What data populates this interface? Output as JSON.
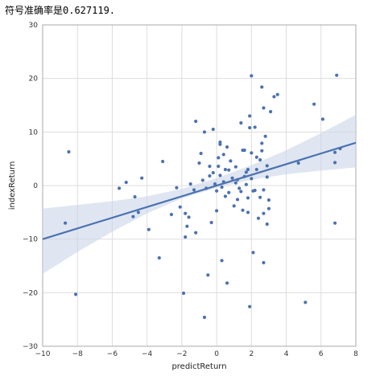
{
  "header": {
    "text": "符号准确率是0.627119."
  },
  "chart_data": {
    "type": "scatter",
    "title": "",
    "xlabel": "predictReturn",
    "ylabel": "indexReturn",
    "xlim": [
      -10,
      8
    ],
    "ylim": [
      -30,
      30
    ],
    "xticks": [
      -10,
      -8,
      -6,
      -4,
      -2,
      0,
      2,
      4,
      6,
      8
    ],
    "yticks": [
      -30,
      -20,
      -10,
      0,
      10,
      20,
      30
    ],
    "grid": true,
    "legend": "none",
    "point_color": "#4c72b0",
    "line_color": "#4c72b0",
    "band_color": "#c9d5ea",
    "regression": {
      "x": [
        -10,
        8
      ],
      "y": [
        -10.0,
        8.0
      ]
    },
    "confidence_band": {
      "x": [
        -10,
        -8,
        -6,
        -4,
        -2,
        0,
        2,
        4,
        6,
        8
      ],
      "lower": [
        -16.5,
        -12.4,
        -8.6,
        -5.2,
        -2.4,
        -0.4,
        1.1,
        2.1,
        2.8,
        3.4
      ],
      "upper": [
        -4.3,
        -3.6,
        -2.9,
        -2.0,
        -0.6,
        1.4,
        3.8,
        6.6,
        9.8,
        13.2
      ]
    },
    "points": [
      {
        "x": -8.5,
        "y": 6.3
      },
      {
        "x": -8.7,
        "y": -7.0
      },
      {
        "x": -8.1,
        "y": -20.3
      },
      {
        "x": -5.6,
        "y": -0.5
      },
      {
        "x": -5.2,
        "y": 0.6
      },
      {
        "x": -4.8,
        "y": -5.8
      },
      {
        "x": -4.7,
        "y": -2.1
      },
      {
        "x": -4.5,
        "y": -5.0
      },
      {
        "x": -4.3,
        "y": 1.4
      },
      {
        "x": -3.9,
        "y": -8.2
      },
      {
        "x": -3.3,
        "y": -13.5
      },
      {
        "x": -3.1,
        "y": 4.5
      },
      {
        "x": -2.6,
        "y": -5.4
      },
      {
        "x": -2.3,
        "y": -0.4
      },
      {
        "x": -2.1,
        "y": -4.0
      },
      {
        "x": -1.9,
        "y": -20.1
      },
      {
        "x": -1.8,
        "y": -5.2
      },
      {
        "x": -1.8,
        "y": -9.6
      },
      {
        "x": -1.7,
        "y": -7.6
      },
      {
        "x": -1.6,
        "y": -5.9
      },
      {
        "x": -1.5,
        "y": 0.3
      },
      {
        "x": -1.3,
        "y": -0.8
      },
      {
        "x": -1.2,
        "y": -8.8
      },
      {
        "x": -1.2,
        "y": 12.0
      },
      {
        "x": -1.0,
        "y": 4.2
      },
      {
        "x": -0.9,
        "y": 6.0
      },
      {
        "x": -0.8,
        "y": 1.0
      },
      {
        "x": -0.7,
        "y": -24.6
      },
      {
        "x": -0.7,
        "y": 10.0
      },
      {
        "x": -0.6,
        "y": -0.5
      },
      {
        "x": -0.5,
        "y": -16.7
      },
      {
        "x": -0.4,
        "y": 1.8
      },
      {
        "x": -0.4,
        "y": 3.6
      },
      {
        "x": -0.3,
        "y": -6.9
      },
      {
        "x": -0.2,
        "y": 10.5
      },
      {
        "x": -0.2,
        "y": 2.4
      },
      {
        "x": -0.1,
        "y": 0.3
      },
      {
        "x": 0.0,
        "y": -4.7
      },
      {
        "x": 0.0,
        "y": -1.0
      },
      {
        "x": 0.1,
        "y": 3.6
      },
      {
        "x": 0.1,
        "y": 5.2
      },
      {
        "x": 0.2,
        "y": 8.1
      },
      {
        "x": 0.2,
        "y": 7.7
      },
      {
        "x": 0.2,
        "y": 1.9
      },
      {
        "x": 0.3,
        "y": -0.3
      },
      {
        "x": 0.3,
        "y": -14.0
      },
      {
        "x": 0.4,
        "y": 5.8
      },
      {
        "x": 0.4,
        "y": 0.7
      },
      {
        "x": 0.5,
        "y": -2.0
      },
      {
        "x": 0.5,
        "y": 3.0
      },
      {
        "x": 0.6,
        "y": -18.2
      },
      {
        "x": 0.6,
        "y": 7.2
      },
      {
        "x": 0.7,
        "y": 2.9
      },
      {
        "x": 0.7,
        "y": -1.3
      },
      {
        "x": 0.8,
        "y": 4.6
      },
      {
        "x": 0.9,
        "y": 1.4
      },
      {
        "x": 1.0,
        "y": -3.8
      },
      {
        "x": 1.1,
        "y": 3.5
      },
      {
        "x": 1.1,
        "y": 0.5
      },
      {
        "x": 1.2,
        "y": -2.6
      },
      {
        "x": 1.2,
        "y": 1.1
      },
      {
        "x": 1.3,
        "y": -0.5
      },
      {
        "x": 1.4,
        "y": 11.7
      },
      {
        "x": 1.4,
        "y": -1.1
      },
      {
        "x": 1.5,
        "y": -4.6
      },
      {
        "x": 1.5,
        "y": 6.6
      },
      {
        "x": 1.6,
        "y": 6.6
      },
      {
        "x": 1.6,
        "y": 1.7
      },
      {
        "x": 1.7,
        "y": 2.5
      },
      {
        "x": 1.7,
        "y": 0.2
      },
      {
        "x": 1.8,
        "y": -2.3
      },
      {
        "x": 1.8,
        "y": -5.0
      },
      {
        "x": 1.8,
        "y": 3.0
      },
      {
        "x": 1.9,
        "y": 13.0
      },
      {
        "x": 1.9,
        "y": -22.6
      },
      {
        "x": 1.9,
        "y": 10.8
      },
      {
        "x": 2.0,
        "y": 6.1
      },
      {
        "x": 2.0,
        "y": 1.3
      },
      {
        "x": 2.0,
        "y": 20.5
      },
      {
        "x": 2.1,
        "y": -1.0
      },
      {
        "x": 2.1,
        "y": -12.5
      },
      {
        "x": 2.2,
        "y": 10.9
      },
      {
        "x": 2.2,
        "y": -0.9
      },
      {
        "x": 2.3,
        "y": 5.3
      },
      {
        "x": 2.3,
        "y": 3.0
      },
      {
        "x": 2.4,
        "y": -6.1
      },
      {
        "x": 2.5,
        "y": 4.8
      },
      {
        "x": 2.5,
        "y": -2.2
      },
      {
        "x": 2.6,
        "y": 6.5
      },
      {
        "x": 2.6,
        "y": 7.9
      },
      {
        "x": 2.6,
        "y": 18.4
      },
      {
        "x": 2.7,
        "y": 14.5
      },
      {
        "x": 2.7,
        "y": -14.4
      },
      {
        "x": 2.7,
        "y": -5.2
      },
      {
        "x": 2.7,
        "y": -0.8
      },
      {
        "x": 2.8,
        "y": 9.2
      },
      {
        "x": 2.9,
        "y": 3.7
      },
      {
        "x": 2.9,
        "y": -7.2
      },
      {
        "x": 2.9,
        "y": 1.6
      },
      {
        "x": 3.0,
        "y": -2.7
      },
      {
        "x": 3.0,
        "y": -4.3
      },
      {
        "x": 3.1,
        "y": 13.8
      },
      {
        "x": 3.3,
        "y": 16.6
      },
      {
        "x": 3.5,
        "y": 17.0
      },
      {
        "x": 4.7,
        "y": 4.2
      },
      {
        "x": 5.1,
        "y": -21.8
      },
      {
        "x": 5.6,
        "y": 15.2
      },
      {
        "x": 6.1,
        "y": 12.4
      },
      {
        "x": 6.8,
        "y": 4.3
      },
      {
        "x": 6.8,
        "y": 6.2
      },
      {
        "x": 6.8,
        "y": -7.0
      },
      {
        "x": 6.9,
        "y": 20.6
      },
      {
        "x": 7.1,
        "y": 6.9
      }
    ]
  }
}
